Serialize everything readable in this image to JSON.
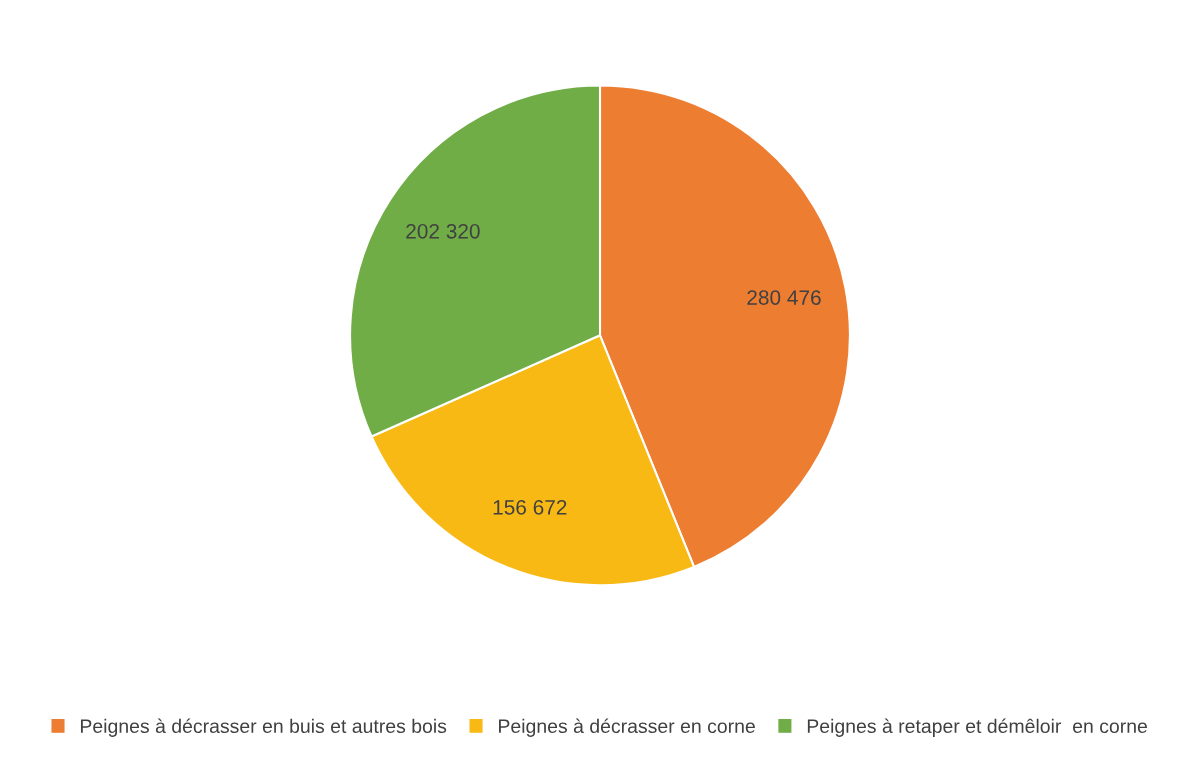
{
  "chart_data": {
    "type": "pie",
    "categories": [
      "Peignes à décrasser en buis et autres bois",
      "Peignes à décrasser en corne",
      "Peignes à retaper et démêloir  en corne"
    ],
    "values": [
      280476,
      156672,
      202320
    ],
    "value_labels": [
      "280 476",
      "156 672",
      "202 320"
    ],
    "colors": [
      "#ed7d31",
      "#f9b915",
      "#70ad47"
    ],
    "legend": "bottom"
  }
}
